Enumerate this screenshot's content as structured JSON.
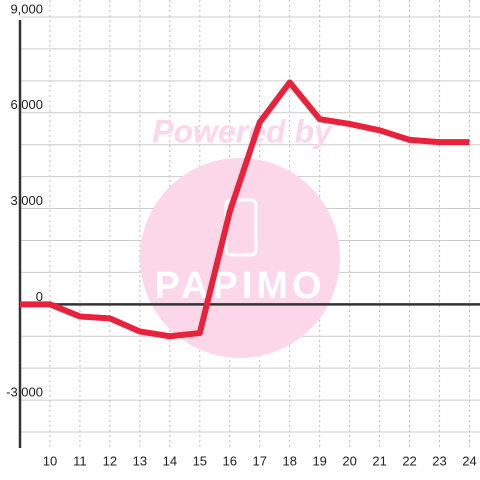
{
  "chart_data": {
    "type": "line",
    "x": [
      9,
      10,
      11,
      12,
      13,
      14,
      15,
      16,
      17,
      18,
      19,
      20,
      21,
      22,
      23,
      24
    ],
    "xticks": [
      10,
      11,
      12,
      13,
      14,
      15,
      16,
      17,
      18,
      19,
      20,
      21,
      22,
      23,
      24
    ],
    "xlim": [
      9,
      24.35
    ],
    "series": [
      {
        "color": "#e8223a",
        "values": [
          0,
          0,
          -380,
          -440,
          -850,
          -1000,
          -900,
          2900,
          5700,
          6950,
          5800,
          5650,
          5450,
          5150,
          5080,
          5080
        ]
      }
    ],
    "ylim": [
      -4500,
      9000
    ],
    "yticks": [
      {
        "value": -3000,
        "label": "-3,000"
      },
      0,
      {
        "value": 3000,
        "label": "3,000"
      },
      {
        "value": 6000,
        "label": "6,000"
      },
      {
        "value": 9000,
        "label": "9,000"
      }
    ],
    "y_minor_ticks": [
      -4000,
      -2000,
      -1000,
      1000,
      2000,
      4000,
      5000,
      7000,
      8000
    ],
    "grid": true,
    "watermark": {
      "text": "Powered by",
      "logo": "PAPIMO"
    }
  }
}
